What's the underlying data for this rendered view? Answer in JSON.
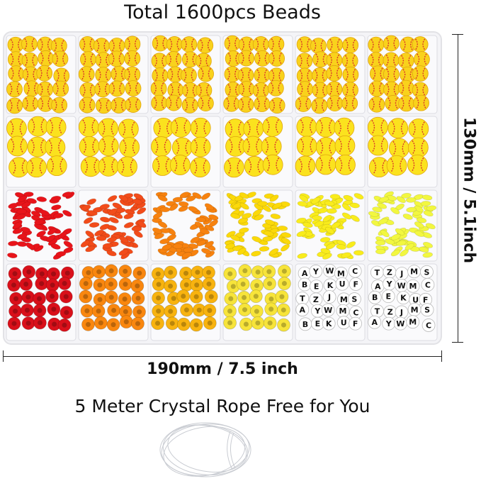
{
  "title": "Total 1600pcs Beads",
  "height_label": "130mm / 5.1inch",
  "width_label": "190mm / 7.5 inch",
  "rope_text": "5 Meter Crystal Rope Free for You",
  "compartments": [
    {
      "row": 1,
      "type": "softball-small",
      "colors": [
        "#f9d21c",
        "#d8352a"
      ]
    },
    {
      "row": 2,
      "type": "softball-large",
      "colors": [
        "#fbe21e",
        "#d8352a"
      ]
    },
    {
      "row": 3,
      "type": "clay-disc",
      "colors": [
        "#e8141a",
        "#f24c1a",
        "#f7820f",
        "#fbd90a",
        "#f9ec1c",
        "#f2f740"
      ]
    },
    {
      "row": 4,
      "type": "pony",
      "colors": [
        "#d9101a",
        "#f9870f",
        "#f8b30f",
        "#f7e43a",
        "#ffffff",
        "#ffffff"
      ]
    }
  ],
  "letter_beads": [
    "A",
    "Y",
    "W",
    "M",
    "C",
    "B",
    "E",
    "K",
    "U",
    "F",
    "T",
    "Z",
    "J",
    "M",
    "S"
  ]
}
